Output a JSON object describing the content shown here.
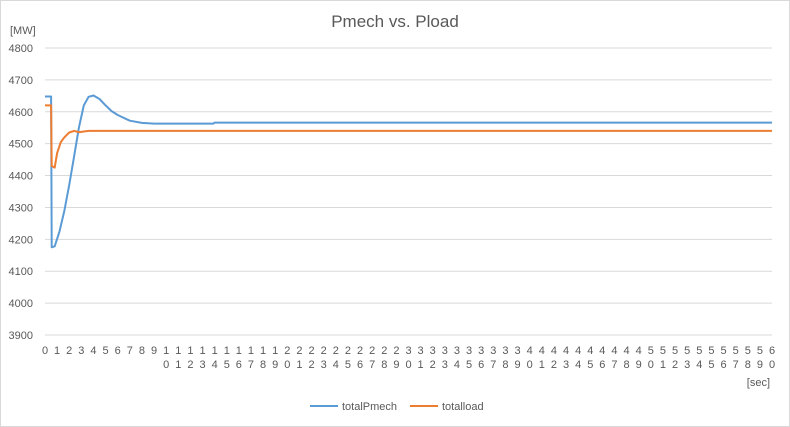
{
  "chart_data": {
    "type": "line",
    "title": "Pmech vs. Pload",
    "xlabel": "[sec]",
    "ylabel": "[MW]",
    "ylim": [
      3900,
      4800
    ],
    "yticks": [
      3900,
      4000,
      4100,
      4200,
      4300,
      4400,
      4500,
      4600,
      4700,
      4800
    ],
    "xlim": [
      0,
      60
    ],
    "xticks": [
      "0",
      "1",
      "2",
      "3",
      "4",
      "5",
      "6",
      "7",
      "8",
      "9",
      "10",
      "11",
      "12",
      "13",
      "14",
      "15",
      "16",
      "17",
      "18",
      "19",
      "20",
      "21",
      "22",
      "23",
      "24",
      "25",
      "26",
      "27",
      "28",
      "29",
      "30",
      "31",
      "32",
      "33",
      "34",
      "35",
      "36",
      "37",
      "38",
      "39",
      "40",
      "41",
      "42",
      "43",
      "44",
      "45",
      "46",
      "47",
      "48",
      "49",
      "50",
      "51",
      "52",
      "53",
      "54",
      "55",
      "56",
      "57",
      "58",
      "59",
      "60"
    ],
    "grid": true,
    "legend": "bottom",
    "colors": {
      "totalPmech": "#5B9BD5",
      "totalload": "#ED7D31",
      "grid": "#d9d9d9",
      "text": "#595959"
    },
    "series": [
      {
        "name": "totalPmech",
        "x": [
          0,
          0.5,
          0.55,
          0.8,
          1.2,
          1.6,
          2.0,
          2.4,
          2.8,
          3.2,
          3.6,
          4.0,
          4.5,
          5.0,
          5.5,
          6.0,
          7.0,
          8.0,
          9.0,
          10.0,
          11.0,
          12.0,
          13.0,
          13.9,
          14.0,
          20.0,
          30.0,
          40.0,
          50.0,
          60.0
        ],
        "values": [
          4648,
          4648,
          4175,
          4178,
          4225,
          4290,
          4370,
          4460,
          4550,
          4620,
          4647,
          4651,
          4640,
          4620,
          4602,
          4590,
          4572,
          4565,
          4563,
          4563,
          4563,
          4563,
          4563,
          4563,
          4566,
          4566,
          4566,
          4566,
          4566,
          4566
        ]
      },
      {
        "name": "totalload",
        "x": [
          0,
          0.5,
          0.55,
          0.8,
          1.0,
          1.3,
          1.6,
          2.0,
          2.4,
          2.8,
          3.2,
          3.6,
          4.0,
          5.0,
          10.0,
          20.0,
          30.0,
          40.0,
          50.0,
          60.0
        ],
        "values": [
          4620,
          4620,
          4430,
          4425,
          4470,
          4505,
          4520,
          4535,
          4540,
          4536,
          4538,
          4540,
          4540,
          4540,
          4540,
          4540,
          4540,
          4540,
          4540,
          4540
        ]
      }
    ]
  }
}
